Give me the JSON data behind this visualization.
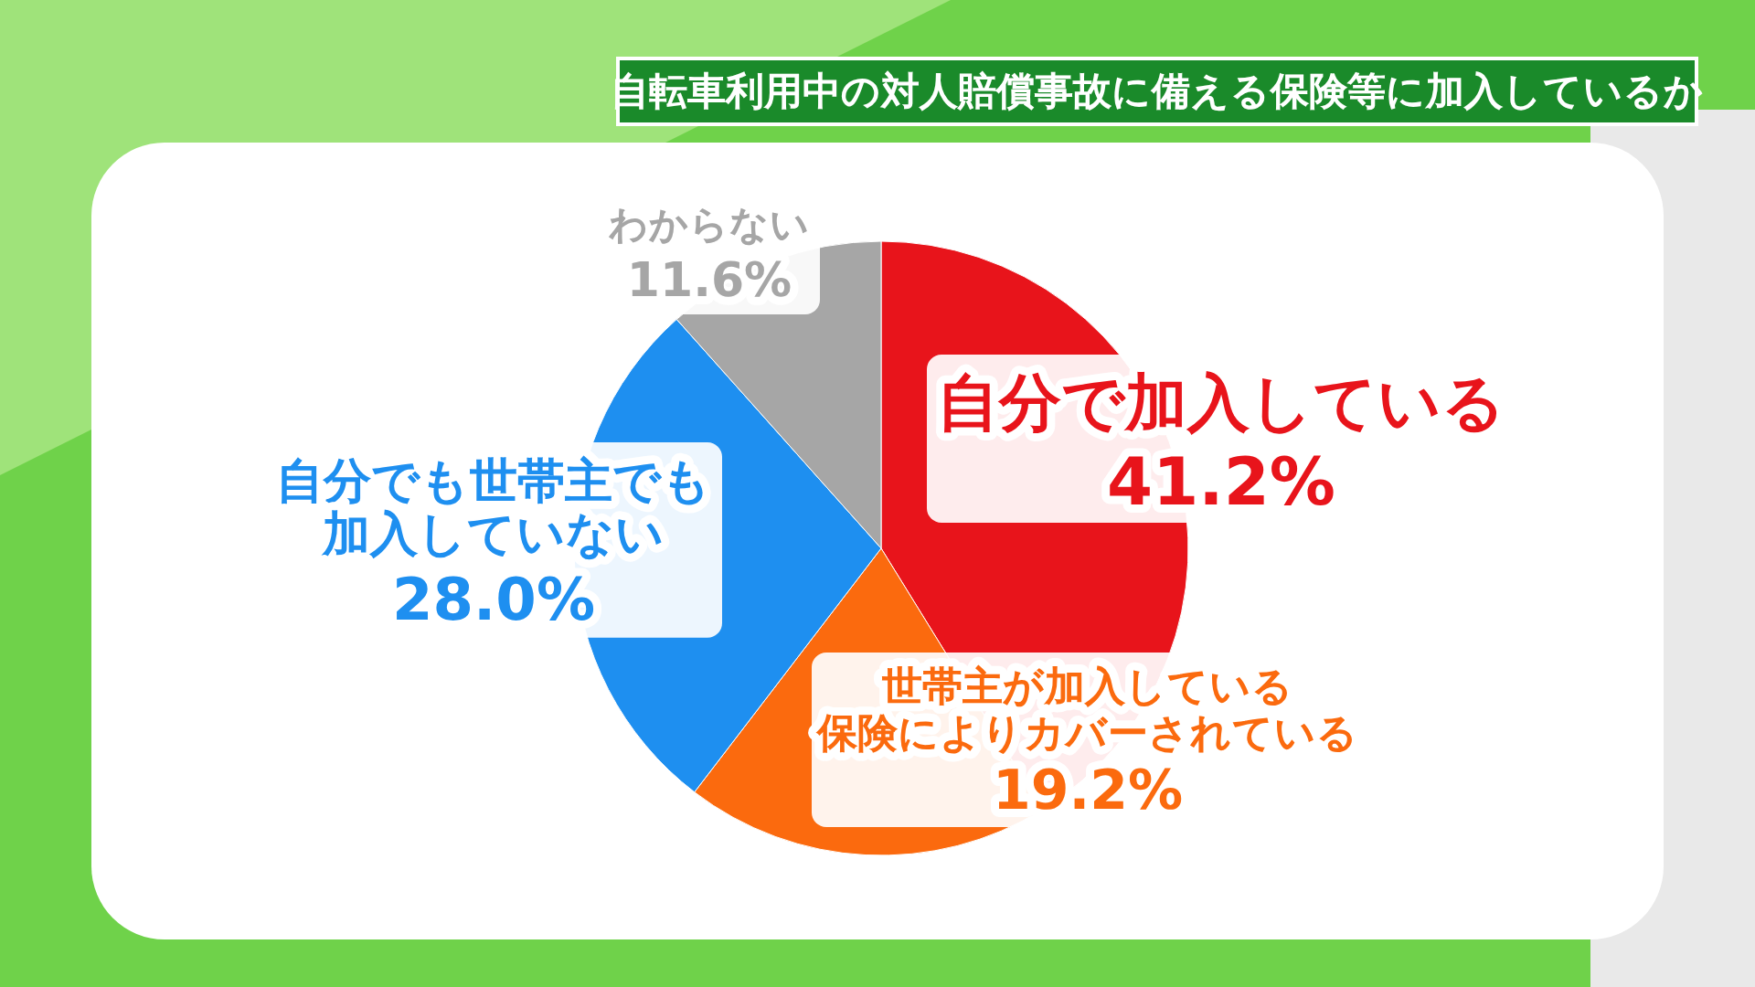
{
  "chart_data": {
    "type": "pie",
    "title": "自転車利用中の対人賠償事故に備える保険等に加入しているか",
    "categories": [
      "自分で加入している",
      "世帯主が加入している保険によりカバーされている",
      "自分でも世帯主でも加入していない",
      "わからない"
    ],
    "values": [
      41.2,
      19.2,
      28.0,
      11.6
    ],
    "value_labels": [
      "41.2%",
      "19.2%",
      "28.0%",
      "11.6%"
    ],
    "colors": [
      "#e8141b",
      "#fb6a0e",
      "#1e8ff0",
      "#a6a6a6"
    ]
  }
}
